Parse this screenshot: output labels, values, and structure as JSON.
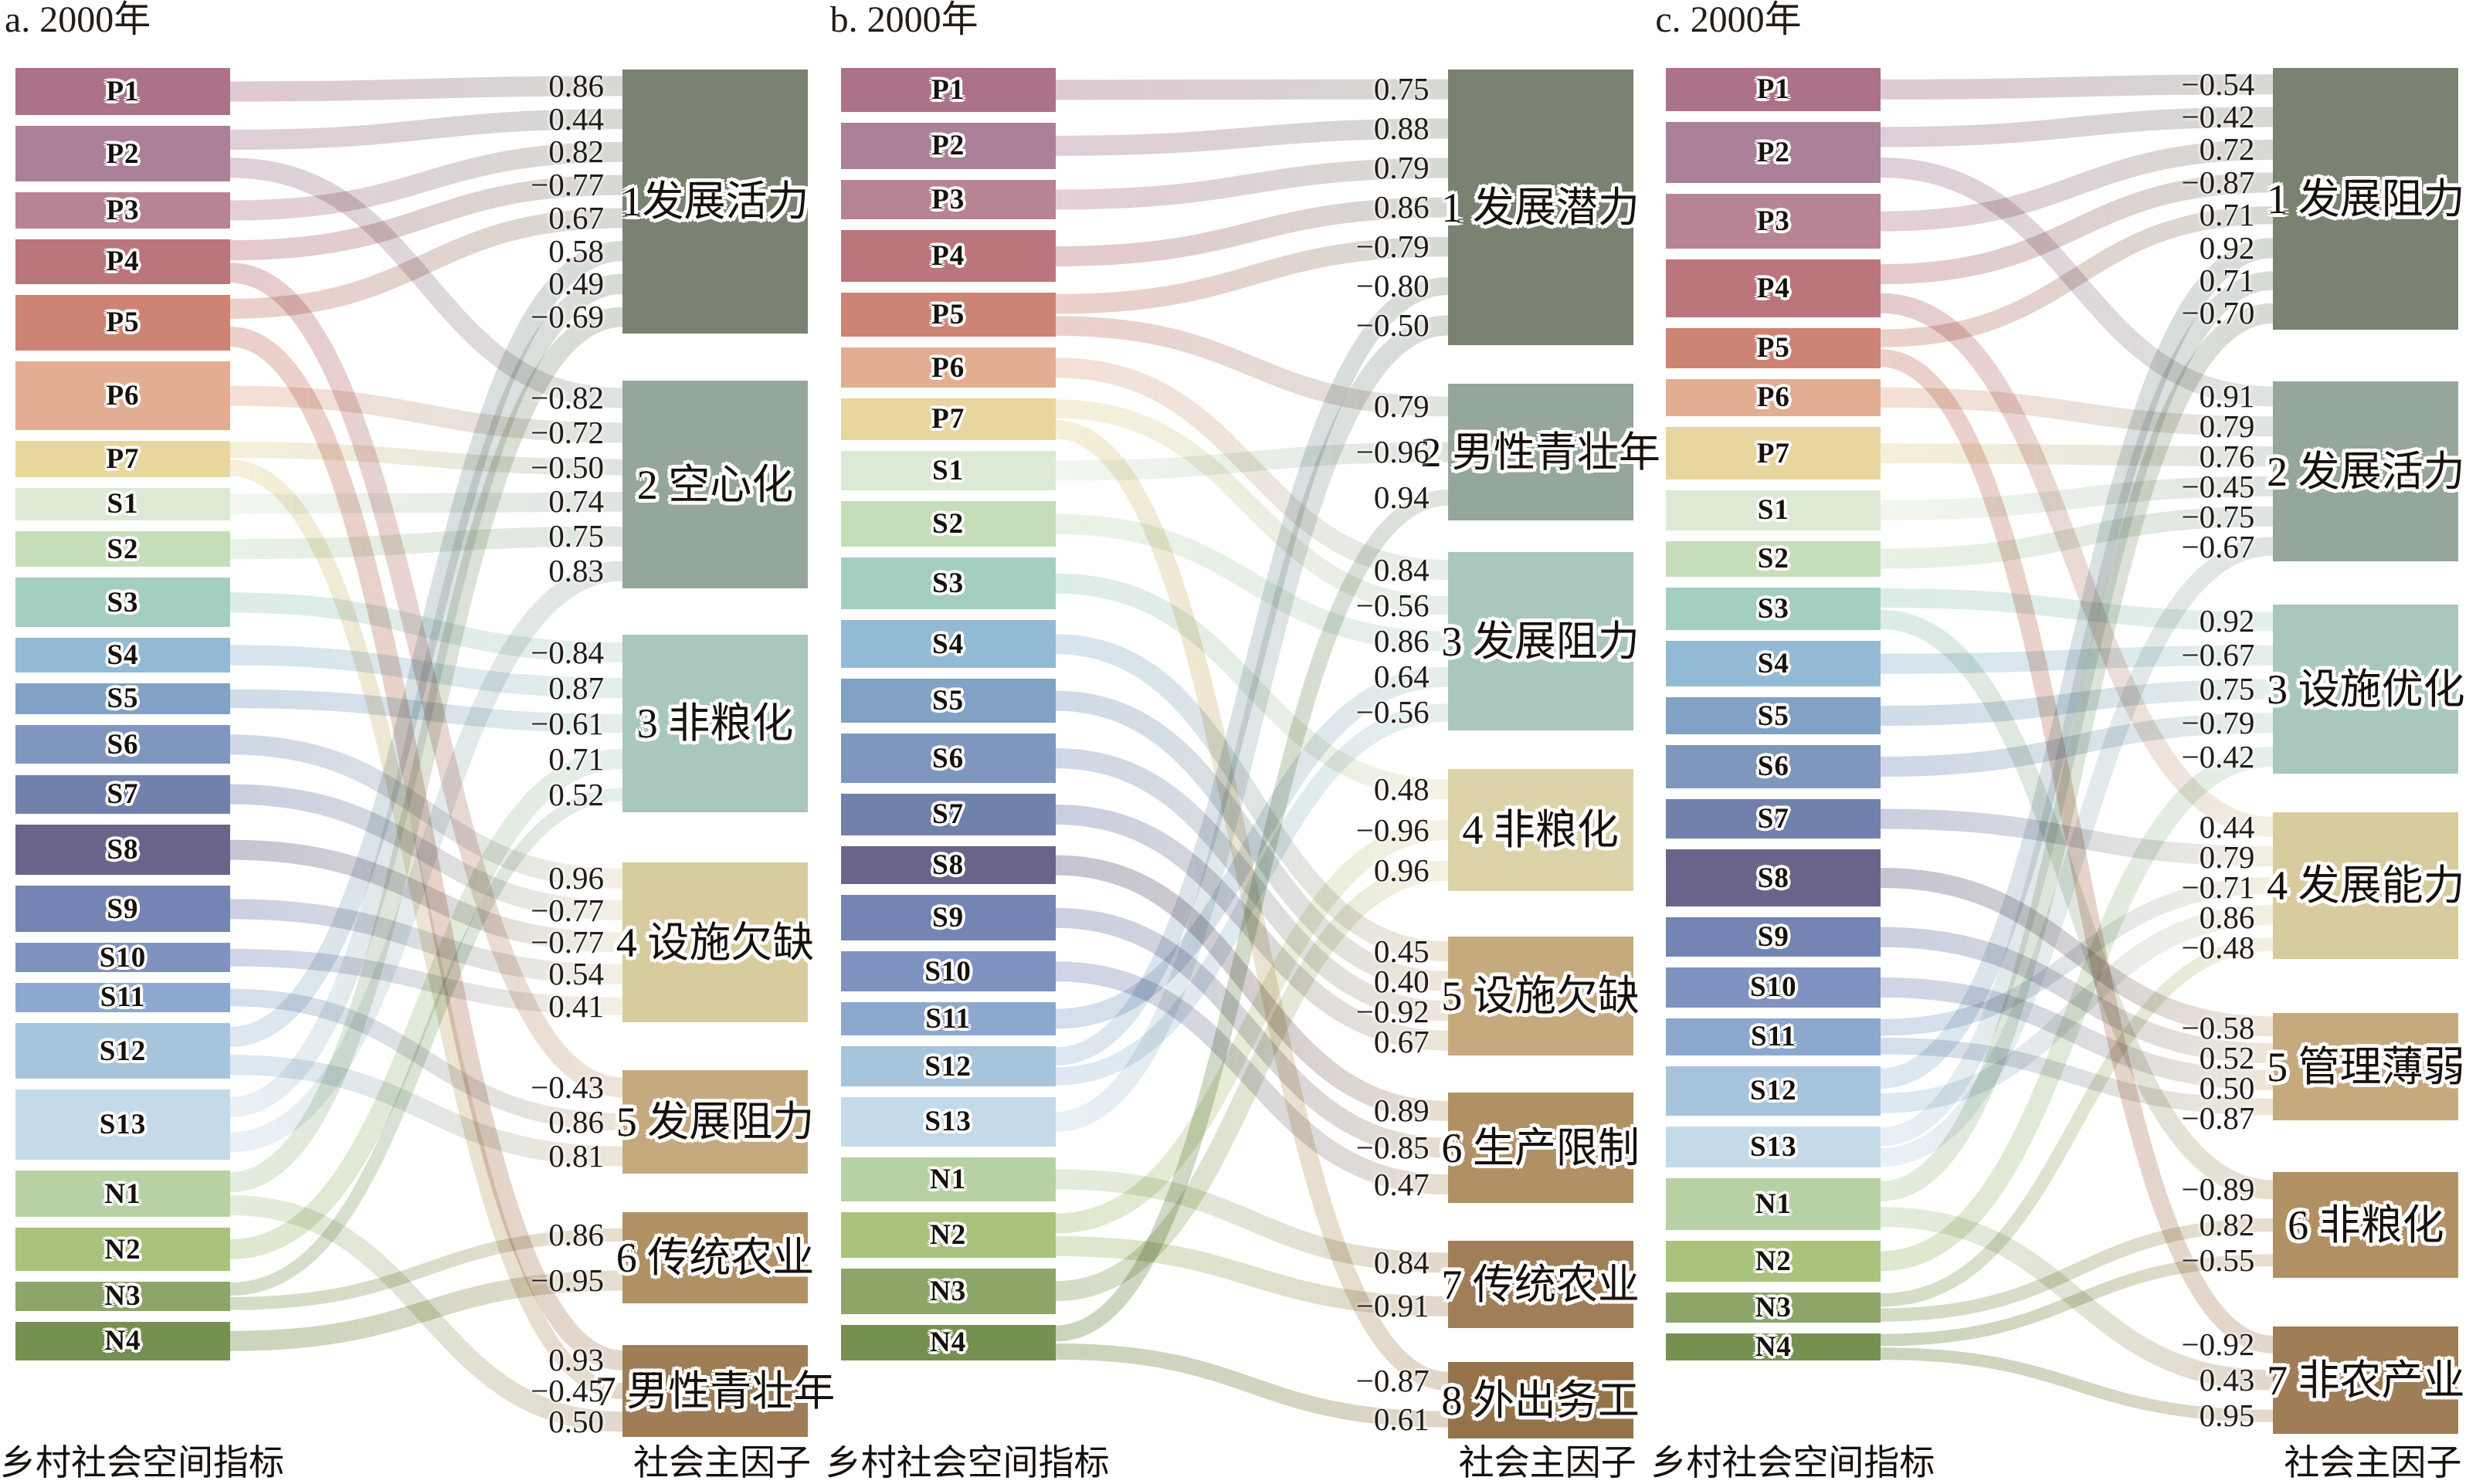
{
  "chart_data": {
    "type": "alluvial",
    "description": "Factor-loading alluvial diagrams linking rural social-space indicators to social principal factors, year 2000",
    "left_axis_label": "乡村社会空间指标",
    "right_axis_label": "社会主因子",
    "indicator_labels": [
      "P1",
      "P2",
      "P3",
      "P4",
      "P5",
      "P6",
      "P7",
      "S1",
      "S2",
      "S3",
      "S4",
      "S5",
      "S6",
      "S7",
      "S8",
      "S9",
      "S10",
      "S11",
      "S12",
      "S13",
      "N1",
      "N2",
      "N3",
      "N4"
    ],
    "indicator_colors": [
      "#ab7289",
      "#ab8098",
      "#b88393",
      "#bb757d",
      "#cd8474",
      "#e3ad92",
      "#e7d69e",
      "#dcead5",
      "#c5deb9",
      "#a3cfc0",
      "#92bad4",
      "#81a2c5",
      "#7f97bf",
      "#7280ac",
      "#6b648a",
      "#7485b3",
      "#7f92c0",
      "#8ca8ce",
      "#a7c4dd",
      "#c4dae9",
      "#b7d1a5",
      "#a9c37d",
      "#8da569",
      "#76914f"
    ],
    "panels": [
      {
        "id": "a",
        "title": "a. 2000年",
        "indicator_weights": [
          63,
          75,
          48,
          60,
          75,
          92,
          48,
          44,
          48,
          66,
          46,
          42,
          52,
          52,
          68,
          62,
          39,
          39,
          75,
          94,
          62,
          58,
          39,
          52
        ],
        "factors": [
          {
            "label": "1发展活力",
            "color": "#7a8271",
            "loadings": [
              "0.86",
              "0.44",
              "0.82",
              "−0.77",
              "0.67",
              "0.58",
              "0.49",
              "−0.69"
            ],
            "box": [
              90,
              342
            ]
          },
          {
            "label": "2 空心化",
            "color": "#95a69b",
            "loadings": [
              "−0.82",
              "−0.72",
              "−0.50",
              "0.74",
              "0.75",
              "0.83"
            ],
            "box": [
              493,
              269
            ]
          },
          {
            "label": "3 非粮化",
            "color": "#a9c7bf",
            "loadings": [
              "−0.84",
              "0.87",
              "−0.61",
              "0.71",
              "0.52"
            ],
            "box": [
              822,
              230
            ]
          },
          {
            "label": "4 设施欠缺",
            "color": "#d8cc9f",
            "loadings": [
              "0.96",
              "−0.77",
              "−0.77",
              "0.54",
              "0.41"
            ],
            "box": [
              1117,
              207
            ]
          },
          {
            "label": "5 发展阻力",
            "color": "#c6aa7f",
            "loadings": [
              "−0.43",
              "0.86",
              "0.81"
            ],
            "box": [
              1386,
              134
            ]
          },
          {
            "label": "6 传统农业",
            "color": "#b19064",
            "loadings": [
              "0.86",
              "−0.95"
            ],
            "box": [
              1570,
              118
            ]
          },
          {
            "label": "7 男性青壮年",
            "color": "#9f7d56",
            "loadings": [
              "0.93",
              "−0.45",
              "0.50"
            ],
            "box": [
              1742,
              119
            ]
          }
        ],
        "links": [
          [
            0,
            0
          ],
          [
            1,
            0
          ],
          [
            2,
            0
          ],
          [
            3,
            0
          ],
          [
            4,
            0
          ],
          [
            18,
            0
          ],
          [
            19,
            0
          ],
          [
            20,
            0
          ],
          [
            1,
            1
          ],
          [
            5,
            1
          ],
          [
            6,
            1
          ],
          [
            7,
            1
          ],
          [
            8,
            1
          ],
          [
            19,
            1
          ],
          [
            9,
            2
          ],
          [
            10,
            2
          ],
          [
            11,
            2
          ],
          [
            21,
            2
          ],
          [
            22,
            2
          ],
          [
            12,
            3
          ],
          [
            13,
            3
          ],
          [
            14,
            3
          ],
          [
            15,
            3
          ],
          [
            16,
            3
          ],
          [
            3,
            4
          ],
          [
            17,
            4
          ],
          [
            18,
            4
          ],
          [
            22,
            5
          ],
          [
            23,
            5
          ],
          [
            4,
            6
          ],
          [
            6,
            6
          ],
          [
            20,
            6
          ]
        ]
      },
      {
        "id": "b",
        "title": "b. 2000年",
        "indicator_weights": [
          55,
          58,
          50,
          65,
          55,
          50,
          52,
          50,
          57,
          65,
          60,
          55,
          62,
          52,
          48,
          57,
          50,
          42,
          50,
          62,
          55,
          57,
          57,
          45
        ],
        "factors": [
          {
            "label": "1 发展潜力",
            "color": "#7a8271",
            "loadings": [
              "0.75",
              "0.88",
              "0.79",
              "0.86",
              "−0.79",
              "−0.80",
              "−0.50"
            ],
            "box": [
              90,
              357
            ]
          },
          {
            "label": "2 男性青壮年",
            "color": "#95a69b",
            "loadings": [
              "0.79",
              "−0.96",
              "0.94"
            ],
            "box": [
              497,
              177
            ]
          },
          {
            "label": "3 发展阻力",
            "color": "#a9c7bf",
            "loadings": [
              "0.84",
              "−0.56",
              "0.86",
              "0.64",
              "−0.56"
            ],
            "box": [
              715,
              231
            ]
          },
          {
            "label": "4 非粮化",
            "color": "#ddd3a8",
            "loadings": [
              "0.48",
              "−0.96",
              "0.96"
            ],
            "box": [
              996,
              158
            ]
          },
          {
            "label": "5 设施欠缺",
            "color": "#c6aa7f",
            "loadings": [
              "0.45",
              "0.40",
              "−0.92",
              "0.67"
            ],
            "box": [
              1213,
              154
            ]
          },
          {
            "label": "6 生产限制",
            "color": "#b19064",
            "loadings": [
              "0.89",
              "−0.85",
              "0.47"
            ],
            "box": [
              1415,
              143
            ]
          },
          {
            "label": "7 传统农业",
            "color": "#a07e57",
            "loadings": [
              "0.84",
              "−0.91"
            ],
            "box": [
              1607,
              113
            ]
          },
          {
            "label": "8 外出务工",
            "color": "#95734a",
            "loadings": [
              "−0.87",
              "0.61"
            ],
            "box": [
              1764,
              99
            ]
          }
        ],
        "links": [
          [
            0,
            0
          ],
          [
            1,
            0
          ],
          [
            2,
            0
          ],
          [
            3,
            0
          ],
          [
            4,
            0
          ],
          [
            18,
            0
          ],
          [
            19,
            0
          ],
          [
            4,
            1
          ],
          [
            7,
            1
          ],
          [
            23,
            1
          ],
          [
            5,
            2
          ],
          [
            6,
            2
          ],
          [
            8,
            2
          ],
          [
            17,
            2
          ],
          [
            18,
            2
          ],
          [
            9,
            3
          ],
          [
            21,
            3
          ],
          [
            22,
            3
          ],
          [
            10,
            4
          ],
          [
            11,
            4
          ],
          [
            12,
            4
          ],
          [
            13,
            4
          ],
          [
            14,
            5
          ],
          [
            15,
            5
          ],
          [
            16,
            5
          ],
          [
            20,
            6
          ],
          [
            21,
            6
          ],
          [
            6,
            7
          ],
          [
            23,
            7
          ]
        ]
      },
      {
        "id": "c",
        "title": "c. 2000年",
        "indicator_weights": [
          52,
          74,
          67,
          70,
          48,
          45,
          64,
          48,
          43,
          52,
          55,
          45,
          52,
          48,
          69,
          48,
          48,
          45,
          60,
          50,
          62,
          50,
          36,
          33
        ],
        "factors": [
          {
            "label": "1 发展阻力",
            "color": "#7a8271",
            "loadings": [
              "−0.54",
              "−0.42",
              "0.72",
              "−0.87",
              "0.71",
              "0.92",
              "0.71",
              "−0.70"
            ],
            "box": [
              88,
              339
            ]
          },
          {
            "label": "2 发展活力",
            "color": "#95a69b",
            "loadings": [
              "0.91",
              "0.79",
              "0.76",
              "−0.45",
              "−0.75",
              "−0.67"
            ],
            "box": [
              494,
              233
            ]
          },
          {
            "label": "3 设施优化",
            "color": "#a9c7bf",
            "loadings": [
              "0.92",
              "−0.67",
              "0.75",
              "−0.79",
              "−0.42"
            ],
            "box": [
              783,
              219
            ]
          },
          {
            "label": "4 发展能力",
            "color": "#d8cc9f",
            "loadings": [
              "0.44",
              "0.79",
              "−0.71",
              "0.86",
              "−0.48"
            ],
            "box": [
              1052,
              190
            ]
          },
          {
            "label": "5 管理薄弱",
            "color": "#c6aa7f",
            "loadings": [
              "−0.58",
              "0.52",
              "0.50",
              "−0.87"
            ],
            "box": [
              1312,
              139
            ]
          },
          {
            "label": "6 非粮化",
            "color": "#b19064",
            "loadings": [
              "−0.89",
              "0.82",
              "−0.55"
            ],
            "box": [
              1518,
              137
            ]
          },
          {
            "label": "7 非农产业",
            "color": "#9f7d56",
            "loadings": [
              "−0.92",
              "0.43",
              "0.95"
            ],
            "box": [
              1718,
              139
            ]
          }
        ],
        "links": [
          [
            0,
            0
          ],
          [
            1,
            0
          ],
          [
            2,
            0
          ],
          [
            3,
            0
          ],
          [
            4,
            0
          ],
          [
            18,
            0
          ],
          [
            19,
            0
          ],
          [
            20,
            0
          ],
          [
            1,
            1
          ],
          [
            5,
            1
          ],
          [
            6,
            1
          ],
          [
            7,
            1
          ],
          [
            8,
            1
          ],
          [
            19,
            1
          ],
          [
            9,
            2
          ],
          [
            10,
            2
          ],
          [
            11,
            2
          ],
          [
            12,
            2
          ],
          [
            21,
            2
          ],
          [
            3,
            3
          ],
          [
            13,
            3
          ],
          [
            17,
            3
          ],
          [
            18,
            3
          ],
          [
            22,
            3
          ],
          [
            14,
            4
          ],
          [
            15,
            4
          ],
          [
            16,
            4
          ],
          [
            17,
            4
          ],
          [
            9,
            5
          ],
          [
            22,
            5
          ],
          [
            23,
            5
          ],
          [
            4,
            6
          ],
          [
            20,
            6
          ],
          [
            23,
            6
          ]
        ]
      }
    ]
  }
}
